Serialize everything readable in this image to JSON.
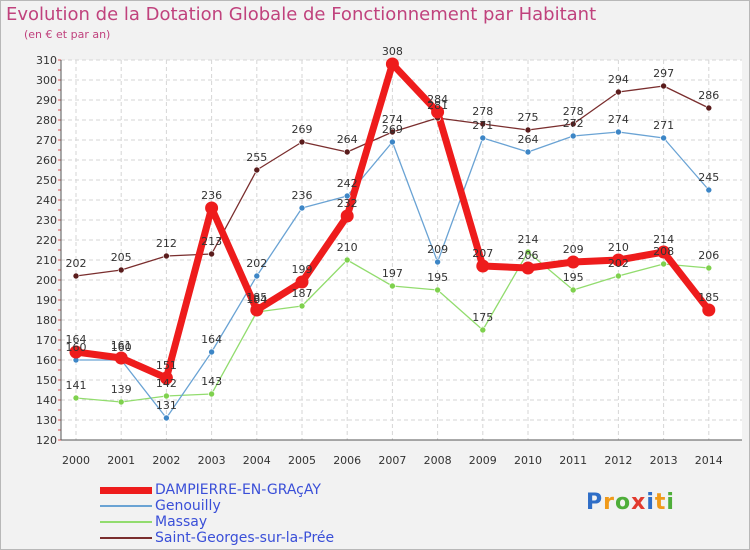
{
  "header": {
    "title": "Evolution de la Dotation Globale de Fonctionnement par Habitant",
    "subtitle": "(en € et par an)"
  },
  "brand": {
    "letters": [
      "P",
      "r",
      "o",
      "x",
      "i",
      "t",
      "i"
    ],
    "colors": [
      "#2f6ec7",
      "#f09a1a",
      "#4fae3a",
      "#e23a2e",
      "#2f6ec7",
      "#f09a1a",
      "#4fae3a"
    ]
  },
  "chart_data": {
    "type": "line",
    "title": "Evolution de la Dotation Globale de Fonctionnement par Habitant",
    "ylabel": "(en € et par an)",
    "xlabel": "",
    "ylim": [
      120,
      310
    ],
    "yticks": [
      120,
      130,
      140,
      150,
      160,
      170,
      180,
      190,
      200,
      210,
      220,
      230,
      240,
      250,
      260,
      270,
      280,
      290,
      300,
      310
    ],
    "categories": [
      "2000",
      "2001",
      "2002",
      "2003",
      "2004",
      "2005",
      "2006",
      "2007",
      "2008",
      "2009",
      "2010",
      "2011",
      "2012",
      "2013",
      "2014"
    ],
    "series": [
      {
        "name": "DAMPIERRE-EN-GRAçAY",
        "color": "#ee1c1c",
        "values": [
          164,
          161,
          151,
          236,
          185,
          199,
          232,
          308,
          284,
          207,
          206,
          209,
          210,
          214,
          185
        ]
      },
      {
        "name": "Genouilly",
        "color": "#6aa3d4",
        "values": [
          160,
          160,
          131,
          164,
          202,
          236,
          242,
          269,
          209,
          271,
          264,
          272,
          274,
          271,
          245
        ]
      },
      {
        "name": "Massay",
        "color": "#92dc6e",
        "values": [
          141,
          139,
          142,
          143,
          184,
          187,
          210,
          197,
          195,
          175,
          214,
          195,
          202,
          208,
          206
        ]
      },
      {
        "name": "Saint-Georges-sur-la-Prée",
        "color": "#7a2e2e",
        "values": [
          202,
          205,
          212,
          213,
          255,
          269,
          264,
          274,
          281,
          278,
          275,
          278,
          294,
          297,
          286
        ]
      }
    ]
  }
}
